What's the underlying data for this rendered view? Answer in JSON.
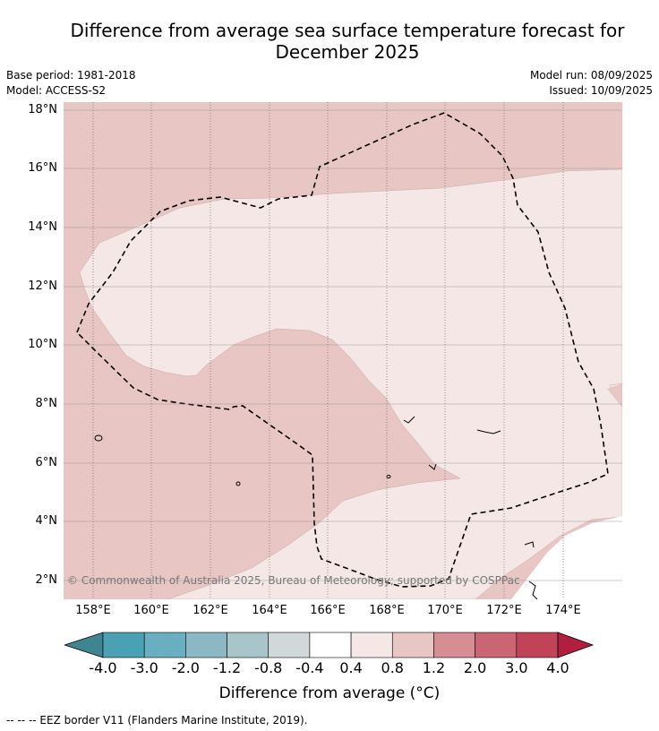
{
  "title": "Difference from average sea surface temperature forecast for December 2025",
  "meta": {
    "base_period": "Base period: 1981-2018",
    "model": "Model: ACCESS-S2",
    "model_run": "Model run: 08/09/2025",
    "issued": "Issued: 10/09/2025"
  },
  "map": {
    "latitude_labels": [
      "18°N",
      "16°N",
      "14°N",
      "12°N",
      "10°N",
      "8°N",
      "6°N",
      "4°N",
      "2°N"
    ],
    "longitude_labels": [
      "158°E",
      "160°E",
      "162°E",
      "164°E",
      "166°E",
      "168°E",
      "170°E",
      "172°E",
      "174°E"
    ],
    "background_color": "#e8c6c3",
    "anomaly_region_color": "#f4e7e6",
    "eez_border_style": "dashed black",
    "copyright": "© Commonwealth of Australia 2025, Bureau of Meteorology; supported by COSPPac"
  },
  "colorbar": {
    "labels": [
      "-4.0",
      "-3.0",
      "-2.0",
      "-1.2",
      "-0.8",
      "-0.4",
      "0.4",
      "0.8",
      "1.2",
      "2.0",
      "3.0",
      "4.0"
    ],
    "colors": [
      "#4aa1b3",
      "#6aafbf",
      "#8db8c3",
      "#a8c5c9",
      "#d0d8da",
      "#ffffff",
      "#f4e7e6",
      "#e8c6c3",
      "#d78d94",
      "#ca6673",
      "#c14358"
    ],
    "low_extend_color": "#3d8590",
    "high_extend_color": "#b11f3f",
    "title": "Difference from average (°C)"
  },
  "footnote": "--  --  -- EEZ border V11 (Flanders Marine Institute, 2019)."
}
